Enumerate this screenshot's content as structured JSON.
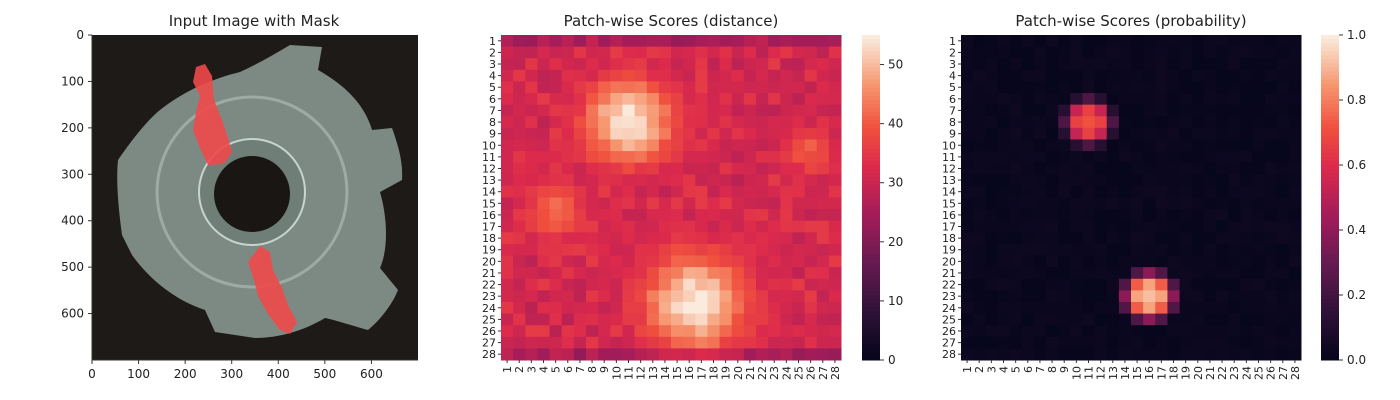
{
  "chart_data": [
    {
      "type": "image",
      "title": "Input Image with Mask",
      "xticks": [
        0,
        100,
        200,
        300,
        400,
        500,
        600
      ],
      "yticks": [
        0,
        100,
        200,
        300,
        400,
        500,
        600
      ],
      "xlim": [
        0,
        700
      ],
      "ylim": [
        700,
        0
      ],
      "image": {
        "background": "#1e1a17",
        "part_color": "#8e9f98",
        "mask_color": "#f0484a"
      }
    },
    {
      "type": "heatmap",
      "title": "Patch-wise Scores (distance)",
      "rows": [
        "1",
        "2",
        "3",
        "4",
        "5",
        "6",
        "7",
        "8",
        "9",
        "10",
        "11",
        "12",
        "13",
        "14",
        "15",
        "16",
        "17",
        "18",
        "19",
        "20",
        "21",
        "22",
        "23",
        "24",
        "25",
        "26",
        "27",
        "28"
      ],
      "cols": [
        "1",
        "2",
        "3",
        "4",
        "5",
        "6",
        "7",
        "8",
        "9",
        "10",
        "11",
        "12",
        "13",
        "14",
        "15",
        "16",
        "17",
        "18",
        "19",
        "20",
        "21",
        "22",
        "23",
        "24",
        "25",
        "26",
        "27",
        "28"
      ],
      "colorbar": {
        "min": 0,
        "max": 55,
        "ticks": [
          0,
          10,
          20,
          30,
          40,
          50
        ]
      },
      "colormap": "rocket",
      "base_value": 30,
      "hotspots": [
        {
          "row": 8,
          "col": 11,
          "peak": 55,
          "spread": 2.6
        },
        {
          "row": 23.5,
          "col": 16.5,
          "peak": 55,
          "spread": 3.0
        },
        {
          "row": 15.5,
          "col": 5,
          "peak": 42,
          "spread": 1.8
        },
        {
          "row": 10.5,
          "col": 26,
          "peak": 40,
          "spread": 1.5
        }
      ]
    },
    {
      "type": "heatmap",
      "title": "Patch-wise Scores (probability)",
      "rows": [
        "1",
        "2",
        "3",
        "4",
        "5",
        "6",
        "7",
        "8",
        "9",
        "10",
        "11",
        "12",
        "13",
        "14",
        "15",
        "16",
        "17",
        "18",
        "19",
        "20",
        "21",
        "22",
        "23",
        "24",
        "25",
        "26",
        "27",
        "28"
      ],
      "cols": [
        "1",
        "2",
        "3",
        "4",
        "5",
        "6",
        "7",
        "8",
        "9",
        "10",
        "11",
        "12",
        "13",
        "14",
        "15",
        "16",
        "17",
        "18",
        "19",
        "20",
        "21",
        "22",
        "23",
        "24",
        "25",
        "26",
        "27",
        "28"
      ],
      "colorbar": {
        "min": 0.0,
        "max": 1.0,
        "ticks": [
          "0.0",
          "0.2",
          "0.4",
          "0.6",
          "0.8",
          "1.0"
        ]
      },
      "colormap": "rocket",
      "hotspots": [
        {
          "row": 8,
          "col": 11,
          "peak": 0.72,
          "spread": 1.5
        },
        {
          "row": 23,
          "col": 16,
          "peak": 0.92,
          "spread": 1.6
        }
      ]
    }
  ]
}
